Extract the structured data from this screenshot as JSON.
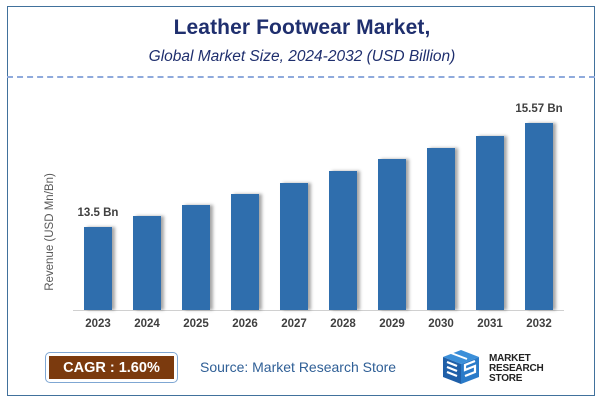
{
  "header": {
    "title": "Leather Footwear Market,",
    "subtitle": "Global Market Size, 2024-2032 (USD Billion)"
  },
  "footer": {
    "cagr_label": "CAGR :  1.60%",
    "source": "Source: Market Research Store",
    "logo_line1": "MARKET",
    "logo_line2": "RESEARCH STORE"
  },
  "colors": {
    "bar": "#2F6EAD",
    "title": "#1F2F6E",
    "cagr_fill": "#7B3A0E",
    "frame": "#41719C"
  },
  "chart_data": {
    "type": "bar",
    "title": "Leather Footwear Market, Global Market Size, 2024-2032 (USD Billion)",
    "xlabel": "",
    "ylabel": "Revenue (USD Mn/Bn)",
    "categories": [
      "2023",
      "2024",
      "2025",
      "2026",
      "2027",
      "2028",
      "2029",
      "2030",
      "2031",
      "2032"
    ],
    "values": [
      13.5,
      13.72,
      13.94,
      14.16,
      14.38,
      14.61,
      14.85,
      15.08,
      15.32,
      15.57
    ],
    "data_labels": {
      "0": "13.5 Bn",
      "9": "15.57 Bn"
    },
    "grid": false,
    "legend": "none",
    "cagr": "1.60%"
  }
}
